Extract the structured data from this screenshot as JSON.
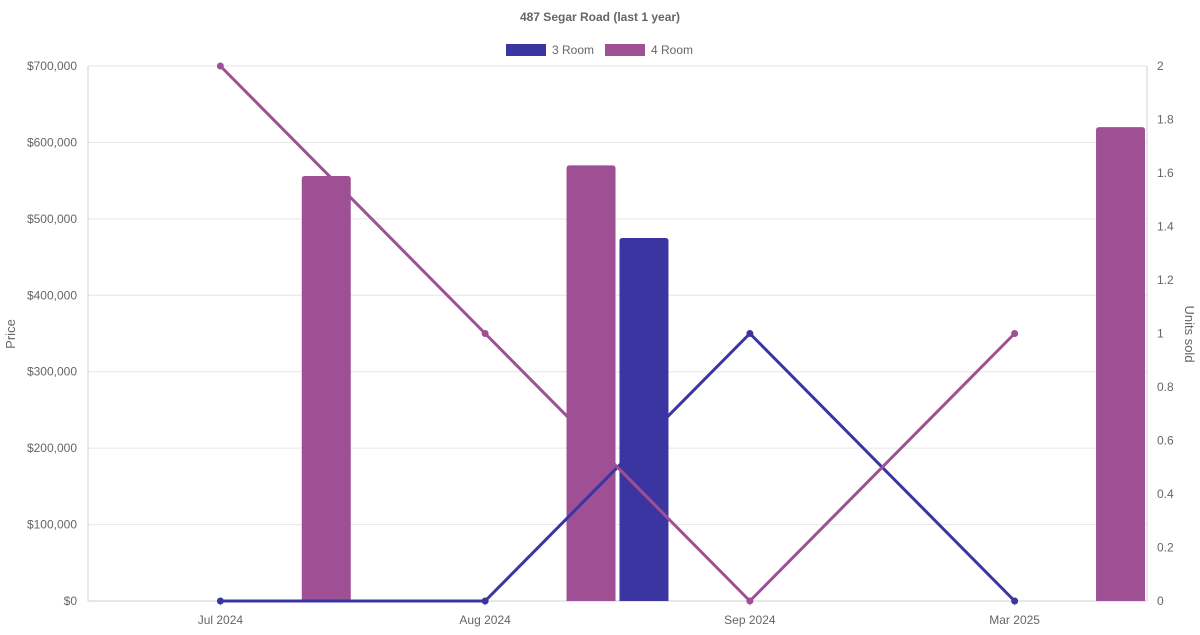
{
  "chart_data": {
    "type": "bar",
    "title": "487 Segar Road (last 1 year)",
    "categories": [
      "Jul 2024",
      "Aug 2024",
      "Sep 2024",
      "Mar 2025"
    ],
    "y_left": {
      "label": "Price",
      "range": [
        0,
        700000
      ],
      "ticks": [
        "$0",
        "$100,000",
        "$200,000",
        "$300,000",
        "$400,000",
        "$500,000",
        "$600,000",
        "$700,000"
      ],
      "tick_values": [
        0,
        100000,
        200000,
        300000,
        400000,
        500000,
        600000,
        700000
      ]
    },
    "y_right": {
      "label": "Units sold",
      "range": [
        0,
        2
      ],
      "ticks": [
        "0",
        "0.2",
        "0.4",
        "0.6",
        "0.8",
        "1",
        "1.2",
        "1.4",
        "1.6",
        "1.8",
        "2"
      ],
      "tick_values": [
        0,
        0.2,
        0.4,
        0.6,
        0.8,
        1,
        1.2,
        1.4,
        1.6,
        1.8,
        2
      ]
    },
    "series": [
      {
        "name": "3 Room",
        "kind": "bar",
        "axis": "left",
        "color": "#3a35a1",
        "values": [
          null,
          null,
          475000,
          null
        ]
      },
      {
        "name": "4 Room",
        "kind": "bar",
        "axis": "left",
        "color": "#9f5094",
        "values": [
          556000,
          570000,
          null,
          620000
        ]
      },
      {
        "name": "3 Room",
        "kind": "line",
        "axis": "right",
        "color": "#3a35a1",
        "values": [
          0,
          0,
          1,
          0
        ]
      },
      {
        "name": "4 Room",
        "kind": "line",
        "axis": "right",
        "color": "#9f5094",
        "values": [
          2,
          1,
          0,
          1
        ]
      }
    ],
    "legend": {
      "position": "top-center",
      "items": [
        {
          "label": "3 Room",
          "color": "#3a35a1"
        },
        {
          "label": "4 Room",
          "color": "#9f5094"
        }
      ]
    },
    "grid": true
  }
}
